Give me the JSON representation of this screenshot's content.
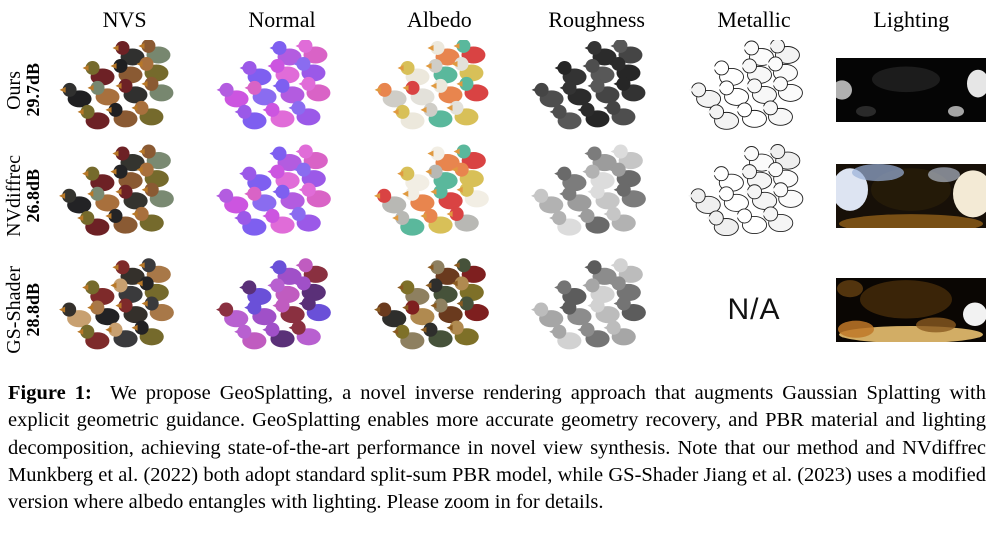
{
  "columns": [
    "NVS",
    "Normal",
    "Albedo",
    "Roughness",
    "Metallic",
    "Lighting"
  ],
  "rows": [
    {
      "label": "Ours",
      "metric": "29.7dB"
    },
    {
      "label": "NVdiffrec",
      "metric": "26.8dB"
    },
    {
      "label": "GS-Shader",
      "metric": "28.8dB"
    }
  ],
  "na_label": "N/A",
  "caption": {
    "label": "Figure 1:",
    "text": "We propose GeoSplatting, a novel inverse rendering approach that augments Gaussian Splatting with explicit geometric guidance. GeoSplatting enables more accurate geometry recovery, and PBR material and lighting decomposition, achieving state-of-the-art performance in novel view synthesis. Note that our method and NVdiffrec Munkberg et al. (2022) both adopt standard split-sum PBR model, while GS-Shader Jiang et al. (2023) uses a modified version where albedo entangles with lighting. Please zoom in for details."
  },
  "cells": {
    "ours_nvs": {
      "type": "ducks",
      "palette": [
        "#30302f",
        "#77876f",
        "#6d2125",
        "#8a5a33",
        "#756a2c",
        "#1f1f21",
        "#a8703d"
      ],
      "beak": "#b87828"
    },
    "ours_normal": {
      "type": "ducks",
      "palette": [
        "#b35ce0",
        "#d963c6",
        "#7e5ff0",
        "#e06cd8",
        "#9b59e8",
        "#cc55e0",
        "#8a6cf0"
      ]
    },
    "ours_albedo": {
      "type": "ducks",
      "palette": [
        "#e8854e",
        "#d94343",
        "#ece8dc",
        "#5ab89c",
        "#d8c058",
        "#cfcdc7",
        "#e3e1da"
      ],
      "beak": "#e09a40"
    },
    "ours_rough": {
      "type": "ducks",
      "palette": [
        "#2b2b2b",
        "#454545",
        "#333333",
        "#585858",
        "#262626",
        "#4e4e4e"
      ]
    },
    "ours_metal": {
      "type": "ducks",
      "palette": [
        "#fbfbfb",
        "#f3f3f3",
        "#ffffff",
        "#f7f7f7"
      ],
      "outline": "#1c1c1c"
    },
    "ours_light": {
      "type": "env",
      "bg": "#050505",
      "blobs": [
        [
          6,
          30,
          10,
          9,
          "#cfcfcf",
          0.85
        ],
        [
          142,
          24,
          11,
          13,
          "#ffffff",
          0.9
        ],
        [
          70,
          20,
          34,
          12,
          "#1c1c1c",
          1
        ],
        [
          120,
          50,
          8,
          5,
          "#e8e8e8",
          0.7
        ],
        [
          30,
          50,
          10,
          5,
          "#2a2a2a",
          1
        ]
      ]
    },
    "nv_nvs": {
      "type": "ducks",
      "palette": [
        "#34342f",
        "#7a8a72",
        "#6d2125",
        "#8a5a33",
        "#756a2c",
        "#232325",
        "#a8703d"
      ],
      "beak": "#b87828"
    },
    "nv_normal": {
      "type": "ducks",
      "palette": [
        "#b35ce0",
        "#d963c6",
        "#7e5ff0",
        "#e06cd8",
        "#9b59e8",
        "#cc55e0",
        "#8a6cf0"
      ]
    },
    "nv_albedo": {
      "type": "ducks",
      "palette": [
        "#e8854e",
        "#d94343",
        "#f2eee4",
        "#5ab89c",
        "#d8c058",
        "#b8b8b4"
      ],
      "beak": "#e09a40"
    },
    "nv_rough": {
      "type": "ducks",
      "palette": [
        "#9c9c9c",
        "#c6c6c6",
        "#7c7c7c",
        "#dcdcdc",
        "#6a6a6a",
        "#b2b2b2"
      ]
    },
    "nv_metal": {
      "type": "ducks",
      "palette": [
        "#fbfbfb",
        "#efefef",
        "#ffffff",
        "#f5f5f5"
      ],
      "outline": "#242424"
    },
    "nv_light": {
      "type": "env",
      "bg": "#171008",
      "blobs": [
        [
          14,
          24,
          18,
          20,
          "#e8f0ff",
          0.95
        ],
        [
          137,
          28,
          20,
          22,
          "#fff7e0",
          0.95
        ],
        [
          75,
          24,
          40,
          20,
          "#241a08",
          1
        ],
        [
          75,
          56,
          72,
          9,
          "#8a5a18",
          0.85
        ],
        [
          42,
          8,
          26,
          8,
          "#9ab0d8",
          0.7
        ],
        [
          108,
          10,
          16,
          7,
          "#c8d4e8",
          0.6
        ]
      ]
    },
    "gs_nvs": {
      "type": "ducks",
      "palette": [
        "#34302b",
        "#a87848",
        "#7e2a2a",
        "#3a3a3c",
        "#756a2c",
        "#c8a070",
        "#222224"
      ],
      "beak": "#b87828"
    },
    "gs_normal": {
      "type": "ducks",
      "palette": [
        "#a050c8",
        "#8a3040",
        "#6a50d8",
        "#c05cc0",
        "#5a3078",
        "#b860d0"
      ]
    },
    "gs_albedo": {
      "type": "ducks",
      "palette": [
        "#6a3a1e",
        "#7e1f1f",
        "#8e8060",
        "#46523a",
        "#7e7028",
        "#2e2e2c",
        "#b08a50"
      ],
      "beak": "#8a5a20"
    },
    "gs_rough": {
      "type": "ducks",
      "palette": [
        "#8c8c8c",
        "#bcbcbc",
        "#5c5c5c",
        "#d2d2d2",
        "#747474",
        "#a6a6a6"
      ]
    },
    "gs_metal": {
      "type": "na"
    },
    "gs_light": {
      "type": "env",
      "bg": "#0a0603",
      "blobs": [
        [
          70,
          20,
          46,
          18,
          "#3a2408",
          1
        ],
        [
          75,
          53,
          72,
          8,
          "#e8c070",
          0.9
        ],
        [
          139,
          34,
          12,
          11,
          "#ffffff",
          0.95
        ],
        [
          20,
          48,
          18,
          8,
          "#c07828",
          0.85
        ],
        [
          14,
          10,
          13,
          8,
          "#5a3a10",
          0.9
        ],
        [
          100,
          44,
          20,
          7,
          "#8a5a20",
          0.8
        ]
      ]
    }
  }
}
